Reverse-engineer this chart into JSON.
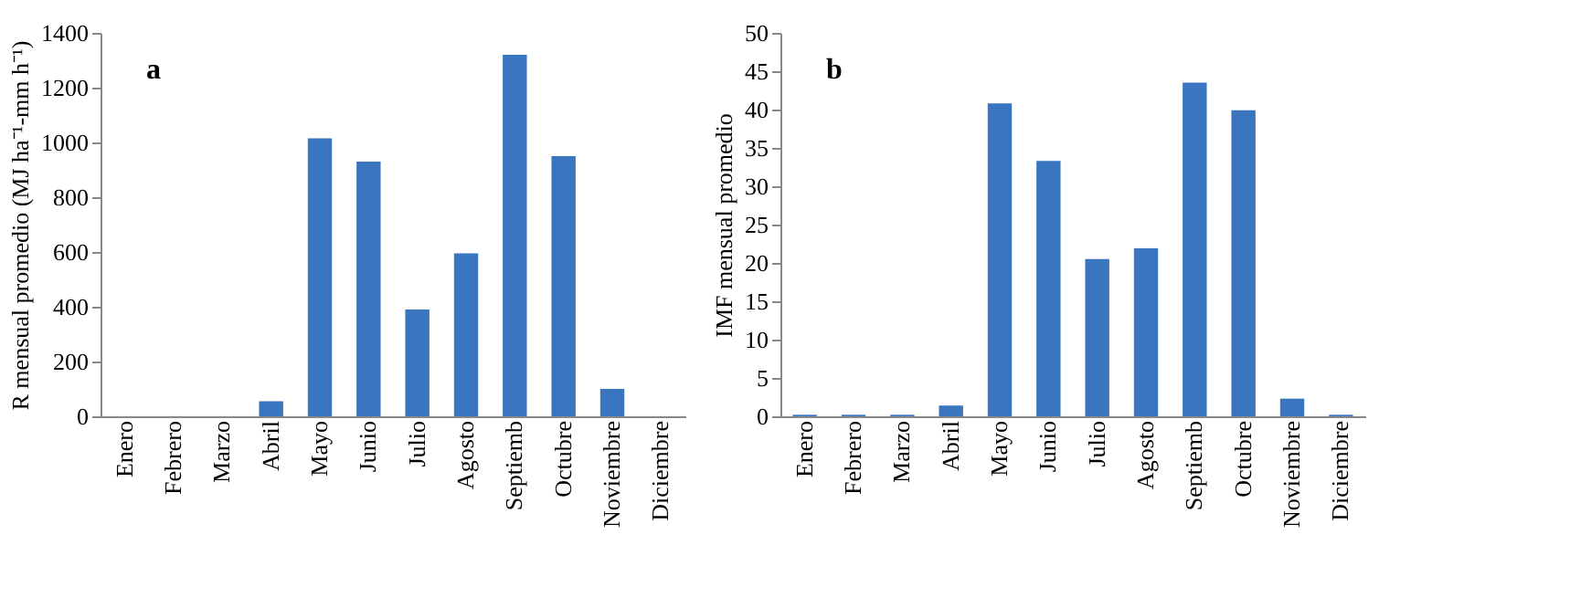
{
  "chart_data": [
    {
      "type": "bar",
      "ylabel": "R mensual promedio  (MJ ha⁻¹-mm h⁻¹)",
      "annotations": [
        "a"
      ],
      "categories": [
        "Enero",
        "Febrero",
        "Marzo",
        "Abril",
        "Mayo",
        "Junio",
        "Julio",
        "Agosto",
        "Septiemb",
        "Octubre",
        "Noviembre",
        "Diciembre"
      ],
      "values": [
        0,
        0,
        0,
        55,
        1015,
        930,
        390,
        595,
        1320,
        950,
        100,
        0
      ],
      "color": "#3a75c0",
      "ylim": [
        0,
        1400
      ],
      "yticks": [
        0,
        200,
        400,
        600,
        800,
        1000,
        1200,
        1400
      ],
      "grid": false
    },
    {
      "type": "bar",
      "ylabel": "IMF mensual promedio",
      "annotations": [
        "b"
      ],
      "categories": [
        "Enero",
        "Febrero",
        "Marzo",
        "Abril",
        "Mayo",
        "Junio",
        "Julio",
        "Agosto",
        "Septiemb",
        "Octubre",
        "Noviembre",
        "Diciembre"
      ],
      "values": [
        0.2,
        0.2,
        0.2,
        1.4,
        40.8,
        33.3,
        20.5,
        21.9,
        43.5,
        39.9,
        2.3,
        0.2
      ],
      "color": "#3a75c0",
      "ylim": [
        0,
        50
      ],
      "yticks": [
        0,
        5,
        10,
        15,
        20,
        25,
        30,
        35,
        40,
        45,
        50
      ],
      "grid": false
    }
  ]
}
